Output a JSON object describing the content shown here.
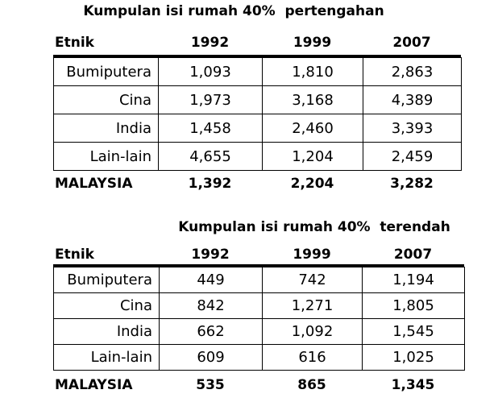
{
  "tables": [
    {
      "title": "Kumpulan isi rumah 40%  pertengahan",
      "header": [
        "Etnik",
        "1992",
        "1999",
        "2007"
      ],
      "rows": [
        [
          "Bumiputera",
          "1,093",
          "1,810",
          "2,863"
        ],
        [
          "Cina",
          "1,973",
          "3,168",
          "4,389"
        ],
        [
          "India",
          "1,458",
          "2,460",
          "3,393"
        ],
        [
          "Lain-lain",
          "4,655",
          "1,204",
          "2,459"
        ]
      ],
      "total": [
        "MALAYSIA",
        "1,392",
        "2,204",
        "3,282"
      ]
    },
    {
      "title": "Kumpulan isi rumah 40%  terendah",
      "header": [
        "Etnik",
        "1992",
        "1999",
        "2007"
      ],
      "rows": [
        [
          "Bumiputera",
          "449",
          "742",
          "1,194"
        ],
        [
          "Cina",
          "842",
          "1,271",
          "1,805"
        ],
        [
          "India",
          "662",
          "1,092",
          "1,545"
        ],
        [
          "Lain-lain",
          "609",
          "616",
          "1,025"
        ]
      ],
      "total": [
        "MALAYSIA",
        "535",
        "865",
        "1,345"
      ]
    }
  ]
}
